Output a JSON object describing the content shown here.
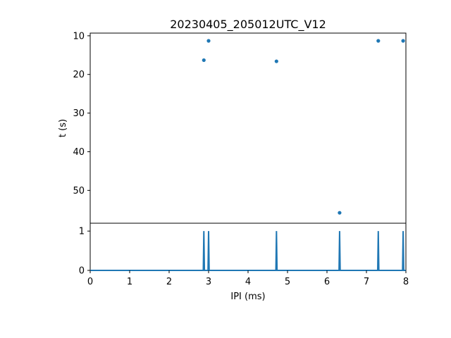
{
  "chart_data": {
    "title": "20230405_205012UTC_V12",
    "xlabel": "IPI (ms)",
    "xlim": [
      0,
      8
    ],
    "xticks": [
      "0",
      "1",
      "2",
      "3",
      "4",
      "5",
      "6",
      "7",
      "8"
    ],
    "color": "#1f77b4",
    "panels": [
      {
        "type": "scatter",
        "ylabel": "t (s)",
        "ylim": [
          58.5,
          9.3
        ],
        "y_inverted": true,
        "yticks": [
          "10",
          "20",
          "30",
          "40",
          "50"
        ],
        "points": [
          {
            "x": 2.88,
            "y": 16.3
          },
          {
            "x": 3.0,
            "y": 11.3
          },
          {
            "x": 4.72,
            "y": 16.6
          },
          {
            "x": 6.32,
            "y": 55.8
          },
          {
            "x": 7.3,
            "y": 11.3
          },
          {
            "x": 7.93,
            "y": 11.3
          }
        ]
      },
      {
        "type": "line",
        "ylabel": "",
        "ylim": [
          0,
          1.2
        ],
        "yticks": [
          "0",
          "1"
        ],
        "spike_positions": [
          2.88,
          3.0,
          4.72,
          6.32,
          7.3,
          7.93
        ],
        "spike_height": 1
      }
    ]
  }
}
